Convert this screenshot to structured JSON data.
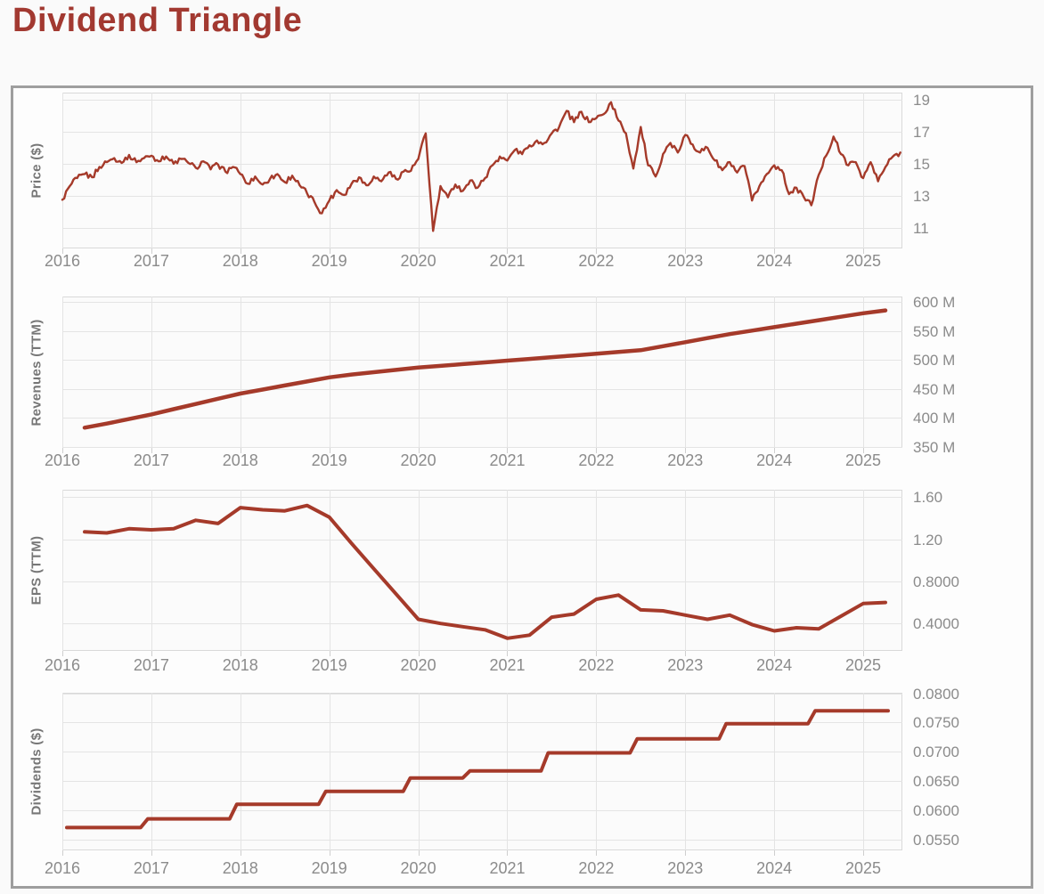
{
  "title": "Dividend Triangle",
  "colors": {
    "accent": "#a23931",
    "line": "#a53a2a",
    "grid": "#e4e4e4",
    "plot_border": "#d9d9d9",
    "plot_bg": "#fbfbfb",
    "tick_stub": "#cfcfcf",
    "axis_text": "#8b8b8b",
    "axis_title_text": "#767676",
    "card_border": "#9e9e9e",
    "card_bg": "#fdfdfd",
    "page_bg": "#fafafa"
  },
  "x_axis": {
    "ticks": [
      {
        "value": 2016,
        "label": "2016"
      },
      {
        "value": 2017,
        "label": "2017"
      },
      {
        "value": 2018,
        "label": "2018"
      },
      {
        "value": 2019,
        "label": "2019"
      },
      {
        "value": 2020,
        "label": "2020"
      },
      {
        "value": 2021,
        "label": "2021"
      },
      {
        "value": 2022,
        "label": "2022"
      },
      {
        "value": 2023,
        "label": "2023"
      },
      {
        "value": 2024,
        "label": "2024"
      },
      {
        "value": 2025,
        "label": "2025"
      }
    ],
    "domain": [
      2016.0,
      2025.44
    ]
  },
  "chart_data": [
    {
      "id": "price",
      "type": "line",
      "axis_title": "Price ($)",
      "y_domain": [
        9.7,
        19.45
      ],
      "y_ticks": [
        {
          "value": 19,
          "label": "19"
        },
        {
          "value": 17,
          "label": "17"
        },
        {
          "value": 15,
          "label": "15"
        },
        {
          "value": 13,
          "label": "13"
        },
        {
          "value": 11,
          "label": "11"
        }
      ],
      "line_width": 2.4,
      "noise": 0.17,
      "series": {
        "x_start": 2016.0,
        "x_step": 0.0833333,
        "values": [
          12.75,
          13.6,
          14.1,
          14.35,
          14.15,
          14.8,
          15.1,
          15.35,
          15.05,
          15.55,
          15.1,
          15.35,
          15.5,
          15.15,
          15.45,
          15.0,
          15.3,
          15.05,
          14.75,
          15.15,
          14.65,
          14.95,
          14.5,
          14.8,
          14.35,
          13.75,
          14.2,
          13.7,
          14.05,
          14.35,
          13.85,
          14.25,
          13.65,
          13.15,
          12.6,
          11.9,
          12.7,
          13.35,
          13.05,
          13.75,
          14.15,
          13.65,
          14.2,
          13.9,
          14.45,
          14.05,
          14.5,
          14.55,
          15.3,
          16.9,
          10.8,
          13.6,
          12.9,
          13.7,
          13.3,
          13.95,
          13.5,
          14.1,
          14.9,
          15.45,
          15.2,
          15.85,
          15.6,
          16.15,
          16.45,
          16.3,
          16.9,
          17.3,
          18.3,
          17.6,
          18.25,
          17.6,
          17.85,
          18.1,
          18.85,
          17.7,
          16.9,
          14.7,
          17.3,
          14.9,
          14.2,
          15.6,
          16.3,
          15.7,
          16.8,
          16.2,
          15.7,
          16.0,
          15.2,
          14.6,
          15.1,
          14.45,
          14.85,
          12.7,
          13.6,
          14.35,
          14.9,
          14.6,
          13.1,
          13.5,
          12.9,
          12.4,
          14.3,
          15.5,
          16.7,
          15.6,
          14.9,
          15.1,
          14.1,
          15.1,
          13.9,
          14.8,
          15.45,
          15.7
        ]
      }
    },
    {
      "id": "revenues",
      "type": "line",
      "axis_title": "Revenues (TTM)",
      "y_domain": [
        348,
        610
      ],
      "y_ticks": [
        {
          "value": 600,
          "label": "600 M"
        },
        {
          "value": 550,
          "label": "550 M"
        },
        {
          "value": 500,
          "label": "500 M"
        },
        {
          "value": 450,
          "label": "450 M"
        },
        {
          "value": 400,
          "label": "400 M"
        },
        {
          "value": 350,
          "label": "350 M"
        }
      ],
      "line_width": 4.5,
      "noise": 0,
      "series": {
        "x_start": 2016.25,
        "x_step": 0.25,
        "values": [
          383,
          390,
          398,
          406,
          415,
          424,
          433,
          442,
          449,
          456,
          463,
          470,
          475,
          479,
          483,
          487,
          490,
          493,
          496,
          499,
          502,
          505,
          508,
          511,
          514,
          517,
          524,
          531,
          538,
          545,
          551,
          557,
          563,
          569,
          575,
          581,
          586
        ]
      }
    },
    {
      "id": "eps",
      "type": "line",
      "axis_title": "EPS (TTM)",
      "y_domain": [
        0.14,
        1.67
      ],
      "y_ticks": [
        {
          "value": 1.6,
          "label": "1.60"
        },
        {
          "value": 1.2,
          "label": "1.20"
        },
        {
          "value": 0.8,
          "label": "0.8000"
        },
        {
          "value": 0.4,
          "label": "0.4000"
        }
      ],
      "line_width": 4,
      "noise": 0,
      "series": {
        "x_start": 2016.25,
        "x_step": 0.25,
        "values": [
          1.27,
          1.26,
          1.3,
          1.29,
          1.3,
          1.38,
          1.35,
          1.5,
          1.48,
          1.47,
          1.52,
          1.41,
          1.16,
          0.92,
          0.68,
          0.44,
          0.4,
          0.37,
          0.34,
          0.26,
          0.29,
          0.46,
          0.49,
          0.63,
          0.67,
          0.53,
          0.52,
          0.48,
          0.44,
          0.48,
          0.39,
          0.33,
          0.36,
          0.35,
          0.47,
          0.59,
          0.6
        ]
      }
    },
    {
      "id": "dividends",
      "type": "line",
      "axis_title": "Dividends ($)",
      "y_domain": [
        0.0531,
        0.0801
      ],
      "y_ticks": [
        {
          "value": 0.08,
          "label": "0.0800"
        },
        {
          "value": 0.075,
          "label": "0.0750"
        },
        {
          "value": 0.07,
          "label": "0.0700"
        },
        {
          "value": 0.065,
          "label": "0.0650"
        },
        {
          "value": 0.06,
          "label": "0.0600"
        },
        {
          "value": 0.055,
          "label": "0.0550"
        }
      ],
      "line_width": 4,
      "noise": 0,
      "points": [
        [
          2016.05,
          0.057
        ],
        [
          2016.88,
          0.057
        ],
        [
          2016.96,
          0.0585
        ],
        [
          2017.88,
          0.0585
        ],
        [
          2017.96,
          0.061
        ],
        [
          2018.88,
          0.061
        ],
        [
          2018.96,
          0.0632
        ],
        [
          2019.83,
          0.0632
        ],
        [
          2019.91,
          0.0655
        ],
        [
          2020.5,
          0.0655
        ],
        [
          2020.58,
          0.0667
        ],
        [
          2021.38,
          0.0667
        ],
        [
          2021.46,
          0.0698
        ],
        [
          2022.38,
          0.0698
        ],
        [
          2022.46,
          0.0722
        ],
        [
          2023.38,
          0.0722
        ],
        [
          2023.46,
          0.0748
        ],
        [
          2024.38,
          0.0748
        ],
        [
          2024.46,
          0.077
        ],
        [
          2025.28,
          0.077
        ]
      ]
    }
  ]
}
